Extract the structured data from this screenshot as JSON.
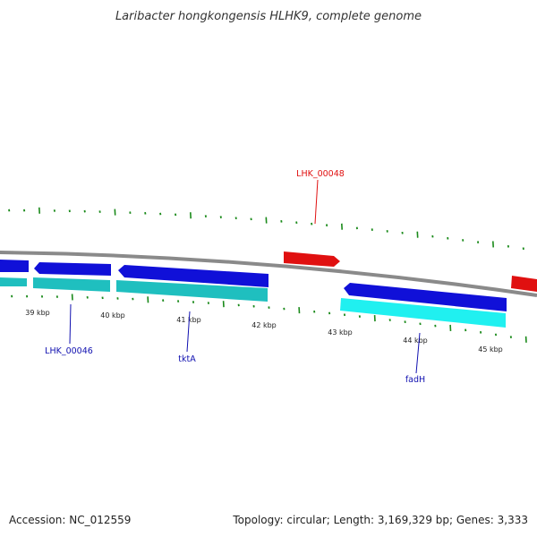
{
  "title": "Laribacter hongkongensis HLHK9, complete genome",
  "footer": {
    "accession": "Accession: NC_012559",
    "summary": "Topology: circular; Length: 3,169,329 bp; Genes: 3,333"
  },
  "colors": {
    "backbone": "#8a8a8a",
    "tick": "#1a8a1a",
    "forward_gene": "#e01010",
    "reverse_gene": "#1010d8",
    "cds_feature": "#1fbfbf",
    "cds_feature_bright": "#20f0f0",
    "label_red": "#e01010",
    "label_blue": "#1010b0"
  },
  "kbp_labels": [
    "39 kbp",
    "40 kbp",
    "41 kbp",
    "42 kbp",
    "43 kbp",
    "44 kbp",
    "45 kbp"
  ],
  "gene_labels": [
    {
      "text": "LHK_00048",
      "color": "red"
    },
    {
      "text": "LHK_00046",
      "color": "blue"
    },
    {
      "text": "tktA",
      "color": "blue"
    },
    {
      "text": "fadH",
      "color": "blue"
    }
  ]
}
